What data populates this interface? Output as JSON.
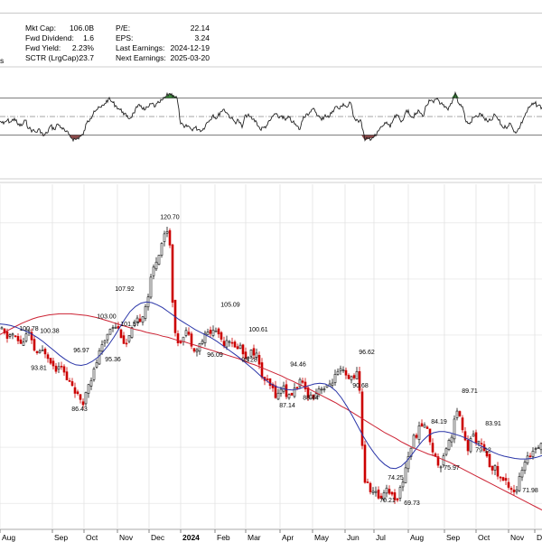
{
  "stats": {
    "left": [
      {
        "label": "Mkt Cap:",
        "value": "106.0B"
      },
      {
        "label": "Fwd Dividend:",
        "value": "1.6"
      },
      {
        "label": "Fwd Yield:",
        "value": "2.23%"
      },
      {
        "label": "SCTR (LrgCap):",
        "value": "23.7"
      }
    ],
    "right": [
      {
        "label": "P/E:",
        "value": "22.14"
      },
      {
        "label": "EPS:",
        "value": "3.24"
      },
      {
        "label": "Last Earnings:",
        "value": "2024-12-19"
      },
      {
        "label": "Next Earnings:",
        "value": "2025-03-20"
      }
    ],
    "cut_text": "s"
  },
  "colors": {
    "up": "#111111",
    "down": "#cc0000",
    "ma_short": "#2a35a8",
    "ma_long": "#cc2233",
    "rsi_line": "#222222",
    "rsi_overbought_fill": "#3a8a3a",
    "rsi_oversold_fill": "#8b4a4a",
    "grid": "#e2e2e2"
  },
  "chart_data": [
    {
      "type": "line",
      "name": "rsi",
      "title": "",
      "ylim": [
        0,
        100
      ],
      "levels": [
        70,
        50,
        30
      ],
      "x": [
        0,
        4,
        8,
        12,
        16,
        20,
        24,
        28,
        32,
        36,
        40,
        44,
        48,
        52,
        56,
        60,
        64,
        68,
        72,
        76,
        80,
        84,
        88,
        92,
        96,
        100,
        104,
        108,
        112,
        116,
        120,
        124,
        128,
        132,
        136,
        140,
        144,
        148,
        152,
        156,
        160,
        164,
        168,
        172,
        176,
        180,
        184,
        188,
        192,
        196,
        200,
        204,
        208,
        212,
        216,
        220,
        224,
        228,
        232,
        236,
        240,
        244,
        248,
        252,
        256,
        260,
        264,
        268,
        272,
        276,
        280,
        284,
        288,
        292,
        296,
        300,
        304,
        308,
        312,
        316,
        320,
        324,
        328,
        332,
        336,
        340,
        344,
        348,
        352,
        356,
        360,
        364,
        368,
        372,
        376,
        380,
        384,
        388,
        392,
        396,
        400,
        404,
        408,
        412,
        416,
        420,
        424,
        428,
        432,
        436,
        440,
        444,
        448,
        452,
        456,
        460,
        464,
        468,
        472,
        476,
        480,
        484,
        488,
        492,
        496,
        500,
        504,
        508,
        512,
        516,
        520,
        524,
        528,
        532,
        536,
        540,
        544,
        548,
        552,
        556,
        560,
        564,
        568,
        572,
        576,
        580,
        584,
        588,
        592,
        596,
        600
      ],
      "values": [
        45,
        42,
        46,
        44,
        48,
        41,
        40,
        46,
        37,
        35,
        33,
        36,
        29,
        32,
        40,
        36,
        42,
        38,
        34,
        31,
        26,
        25,
        28,
        30,
        43,
        48,
        56,
        58,
        60,
        64,
        69,
        66,
        62,
        58,
        55,
        50,
        48,
        54,
        60,
        62,
        57,
        60,
        64,
        61,
        65,
        68,
        72,
        75,
        73,
        70,
        42,
        38,
        40,
        36,
        38,
        36,
        35,
        42,
        46,
        52,
        48,
        55,
        58,
        53,
        48,
        44,
        46,
        38,
        52,
        50,
        47,
        44,
        36,
        38,
        41,
        47,
        53,
        49,
        51,
        46,
        49,
        44,
        40,
        36,
        50,
        53,
        55,
        58,
        51,
        46,
        52,
        49,
        56,
        61,
        58,
        64,
        60,
        65,
        49,
        46,
        44,
        24,
        26,
        27,
        29,
        36,
        40,
        44,
        38,
        48,
        51,
        44,
        52,
        57,
        49,
        52,
        56,
        50,
        62,
        67,
        65,
        70,
        64,
        60,
        57,
        64,
        76,
        64,
        61,
        44,
        42,
        49,
        50,
        53,
        48,
        44,
        46,
        52,
        46,
        39,
        38,
        43,
        36,
        33,
        40,
        49,
        57,
        62,
        64,
        62,
        60
      ]
    },
    {
      "type": "candlestick",
      "name": "price",
      "title": "",
      "ylim": [
        66,
        124
      ],
      "x_tick_labels": [
        "Aug",
        "Sep",
        "Oct",
        "Nov",
        "Dec",
        "2024",
        "Feb",
        "Mar",
        "Apr",
        "May",
        "Jun",
        "Jul",
        "Aug",
        "Sep",
        "Oct",
        "Nov",
        "De"
      ],
      "close_series_x": [
        0,
        6,
        12,
        18,
        24,
        30,
        36,
        42,
        48,
        54,
        60,
        66,
        72,
        78,
        84,
        90,
        96,
        102,
        108,
        114,
        120,
        126,
        132,
        138,
        144,
        150,
        156,
        162,
        168,
        174,
        180,
        186,
        192,
        198,
        204,
        210,
        216,
        222,
        228,
        234,
        240,
        246,
        252,
        258,
        264,
        270,
        276,
        282,
        288,
        294,
        300,
        306,
        312,
        318,
        324,
        330,
        336,
        342,
        348,
        354,
        360,
        366,
        372,
        378,
        384,
        390,
        396,
        402,
        408,
        414,
        420,
        426,
        432,
        438,
        444,
        450,
        456,
        462,
        468,
        474,
        480,
        486,
        492,
        498,
        504,
        510,
        516,
        522,
        528,
        534,
        540,
        546,
        552,
        558,
        564,
        570,
        576,
        582,
        588,
        594,
        600
      ],
      "close_series": [
        101,
        99.5,
        100.3,
        99.0,
        98.5,
        100.8,
        97.5,
        96.5,
        97.3,
        96.0,
        93.8,
        95.5,
        92.0,
        91.5,
        89.5,
        87.0,
        91.5,
        93.0,
        96.4,
        98.5,
        101.3,
        102.0,
        100.6,
        98.0,
        100.4,
        102.2,
        103.4,
        106.2,
        111.5,
        114.3,
        117.6,
        119.5,
        100.0,
        98.6,
        101.2,
        99.0,
        97.2,
        98.8,
        100.4,
        100.7,
        100.8,
        98.5,
        99.8,
        97.4,
        98.4,
        96.1,
        96.9,
        97.1,
        93.0,
        91.5,
        90.5,
        89.0,
        91.3,
        88.6,
        90.0,
        91.7,
        90.5,
        89.0,
        89.6,
        91.0,
        90.2,
        91.8,
        92.9,
        93.6,
        91.8,
        92.9,
        93.0,
        74.3,
        72.6,
        71.8,
        70.8,
        73.0,
        71.6,
        70.7,
        73.3,
        78.0,
        81.2,
        83.0,
        84.5,
        82.0,
        78.3,
        76.5,
        79.9,
        81.5,
        86.5,
        84.3,
        79.1,
        82.3,
        81.0,
        79.5,
        77.0,
        76.4,
        74.5,
        73.9,
        73.0,
        72.0,
        75.5,
        77.5,
        79.4,
        80.5,
        81.0
      ],
      "ma_short": [
        102.0,
        101.9,
        101.7,
        101.4,
        101.0,
        100.6,
        100.1,
        99.5,
        98.8,
        98.0,
        97.2,
        96.4,
        95.7,
        95.1,
        94.7,
        94.6,
        94.8,
        95.3,
        96.0,
        97.0,
        98.2,
        99.6,
        101.2,
        102.8,
        104.2,
        105.1,
        105.7,
        105.9,
        105.8,
        105.4,
        104.9,
        104.2,
        103.5,
        102.8,
        102.2,
        101.6,
        101.0,
        100.5,
        100.0,
        99.5,
        98.9,
        98.2,
        97.5,
        96.8,
        96.1,
        95.3,
        94.5,
        93.7,
        92.8,
        92.0,
        91.3,
        90.8,
        90.5,
        90.3,
        90.2,
        90.4,
        90.7,
        91.0,
        91.3,
        91.4,
        91.3,
        90.8,
        90.0,
        88.8,
        87.3,
        85.6,
        83.8,
        82.0,
        80.4,
        79.0,
        77.8,
        76.9,
        76.3,
        76.2,
        76.6,
        77.5,
        78.7,
        80.0,
        81.2,
        82.1,
        82.6,
        82.8,
        82.8,
        82.6,
        82.3,
        82.0,
        81.6,
        81.1,
        80.6,
        80.1,
        79.6,
        79.1,
        78.7,
        78.4,
        78.2,
        78.0,
        77.9,
        77.9,
        78.0,
        78.2,
        78.5
      ],
      "ma_long": [
        100.1,
        100.6,
        101.1,
        101.6,
        102.1,
        102.5,
        102.9,
        103.2,
        103.4,
        103.6,
        103.7,
        103.8,
        103.8,
        103.8,
        103.7,
        103.6,
        103.5,
        103.3,
        103.1,
        102.8,
        102.5,
        102.2,
        101.9,
        101.6,
        101.3,
        101.0,
        100.8,
        100.5,
        100.3,
        100.1,
        99.8,
        99.6,
        99.3,
        99.0,
        98.8,
        98.5,
        98.2,
        97.9,
        97.6,
        97.3,
        97.0,
        96.7,
        96.4,
        96.1,
        95.8,
        95.4,
        95.0,
        94.7,
        94.3,
        93.9,
        93.5,
        93.1,
        92.7,
        92.2,
        91.8,
        91.3,
        90.9,
        90.4,
        89.9,
        89.4,
        88.9,
        88.4,
        87.9,
        87.3,
        86.8,
        86.2,
        85.6,
        85.0,
        84.4,
        83.8,
        83.2,
        82.6,
        82.1,
        81.6,
        81.0,
        80.5,
        80.0,
        79.6,
        79.2,
        78.8,
        78.5,
        78.1,
        77.7,
        77.3,
        76.8,
        76.3,
        75.8,
        75.3,
        74.8,
        74.3,
        73.8,
        73.3,
        72.8,
        72.3,
        71.8,
        71.3,
        70.8,
        70.3,
        69.8,
        69.3,
        68.8
      ],
      "data_labels": [
        {
          "x": 32,
          "value": 100.78
        },
        {
          "x": 55,
          "value": 100.38
        },
        {
          "x": 43,
          "value": 93.81
        },
        {
          "x": 90,
          "value": 96.97
        },
        {
          "x": 88,
          "value": 86.43
        },
        {
          "x": 118,
          "value": 103.0
        },
        {
          "x": 138,
          "value": 107.92
        },
        {
          "x": 144,
          "value": 101.57
        },
        {
          "x": 125,
          "value": 95.36
        },
        {
          "x": 188,
          "value": 120.7
        },
        {
          "x": 255,
          "value": 105.09
        },
        {
          "x": 238,
          "value": 96.09
        },
        {
          "x": 286,
          "value": 100.61
        },
        {
          "x": 276,
          "value": 95.28
        },
        {
          "x": 330,
          "value": 94.46
        },
        {
          "x": 318,
          "value": 87.14
        },
        {
          "x": 344,
          "value": 88.44
        },
        {
          "x": 406,
          "value": 96.62
        },
        {
          "x": 399,
          "value": 90.68
        },
        {
          "x": 438,
          "value": 74.25
        },
        {
          "x": 429,
          "value": 70.21
        },
        {
          "x": 456,
          "value": 69.73
        },
        {
          "x": 486,
          "value": 84.19
        },
        {
          "x": 500,
          "value": 75.97
        },
        {
          "x": 520,
          "value": 89.71
        },
        {
          "x": 546,
          "value": 83.91
        },
        {
          "x": 535,
          "value": 79.12
        },
        {
          "x": 587,
          "value": 71.98
        }
      ]
    }
  ]
}
